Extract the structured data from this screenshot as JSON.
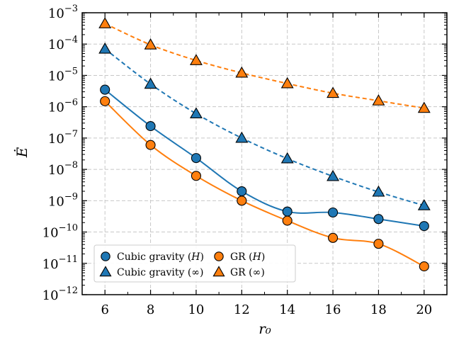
{
  "chart_data": {
    "type": "line",
    "xlabel": "r₀",
    "ylabel": "Ė",
    "xlim": [
      5,
      21
    ],
    "ylim": [
      1e-12,
      0.001
    ],
    "yscale": "log",
    "grid": true,
    "legend_position": "lower-left",
    "x_ticks": [
      6,
      8,
      10,
      12,
      14,
      16,
      18,
      20
    ],
    "y_ticks": [
      {
        "value": 1e-12,
        "mantissa": "10",
        "exp": "−12"
      },
      {
        "value": 1e-11,
        "mantissa": "10",
        "exp": "−11"
      },
      {
        "value": 1e-10,
        "mantissa": "10",
        "exp": "−10"
      },
      {
        "value": 1e-09,
        "mantissa": "10",
        "exp": "−9"
      },
      {
        "value": 1e-08,
        "mantissa": "10",
        "exp": "−8"
      },
      {
        "value": 1e-07,
        "mantissa": "10",
        "exp": "−7"
      },
      {
        "value": 1e-06,
        "mantissa": "10",
        "exp": "−6"
      },
      {
        "value": 1e-05,
        "mantissa": "10",
        "exp": "−5"
      },
      {
        "value": 0.0001,
        "mantissa": "10",
        "exp": "−4"
      },
      {
        "value": 0.001,
        "mantissa": "10",
        "exp": "−3"
      }
    ],
    "x": [
      6,
      8,
      10,
      12,
      14,
      16,
      18,
      20
    ],
    "series": [
      {
        "name": "Cubic gravity (H)",
        "marker": "circle",
        "line": "solid",
        "color": "#1f77b4",
        "values": [
          3.5e-06,
          2.4e-07,
          2.3e-08,
          2e-09,
          4.5e-10,
          4.2e-10,
          2.6e-10,
          1.55e-10
        ]
      },
      {
        "name": "Cubic gravity (∞)",
        "marker": "triangle",
        "line": "dashed",
        "color": "#1f77b4",
        "values": [
          7e-05,
          5.3e-06,
          6e-07,
          1e-07,
          2.2e-08,
          6e-09,
          1.9e-09,
          7e-10
        ]
      },
      {
        "name": "GR (H)",
        "marker": "circle",
        "line": "solid",
        "color": "#ff7f0e",
        "values": [
          1.5e-06,
          6e-08,
          6.2e-09,
          1e-09,
          2.3e-10,
          6.5e-11,
          4.2e-11,
          8e-12
        ]
      },
      {
        "name": "GR (∞)",
        "marker": "triangle",
        "line": "dashed",
        "color": "#ff7f0e",
        "values": [
          0.00045,
          9.5e-05,
          3e-05,
          1.2e-05,
          5.5e-06,
          2.7e-06,
          1.55e-06,
          9e-07
        ]
      }
    ],
    "legend": {
      "items": [
        {
          "series": 0,
          "prefix": "Cubic gravity (",
          "var": "H",
          "suffix": ")"
        },
        {
          "series": 1,
          "prefix": "Cubic gravity (",
          "var": "∞",
          "suffix": ")"
        },
        {
          "series": 2,
          "prefix": "GR (",
          "var": "H",
          "suffix": ")"
        },
        {
          "series": 3,
          "prefix": "GR (",
          "var": "∞",
          "suffix": ")"
        }
      ]
    }
  }
}
